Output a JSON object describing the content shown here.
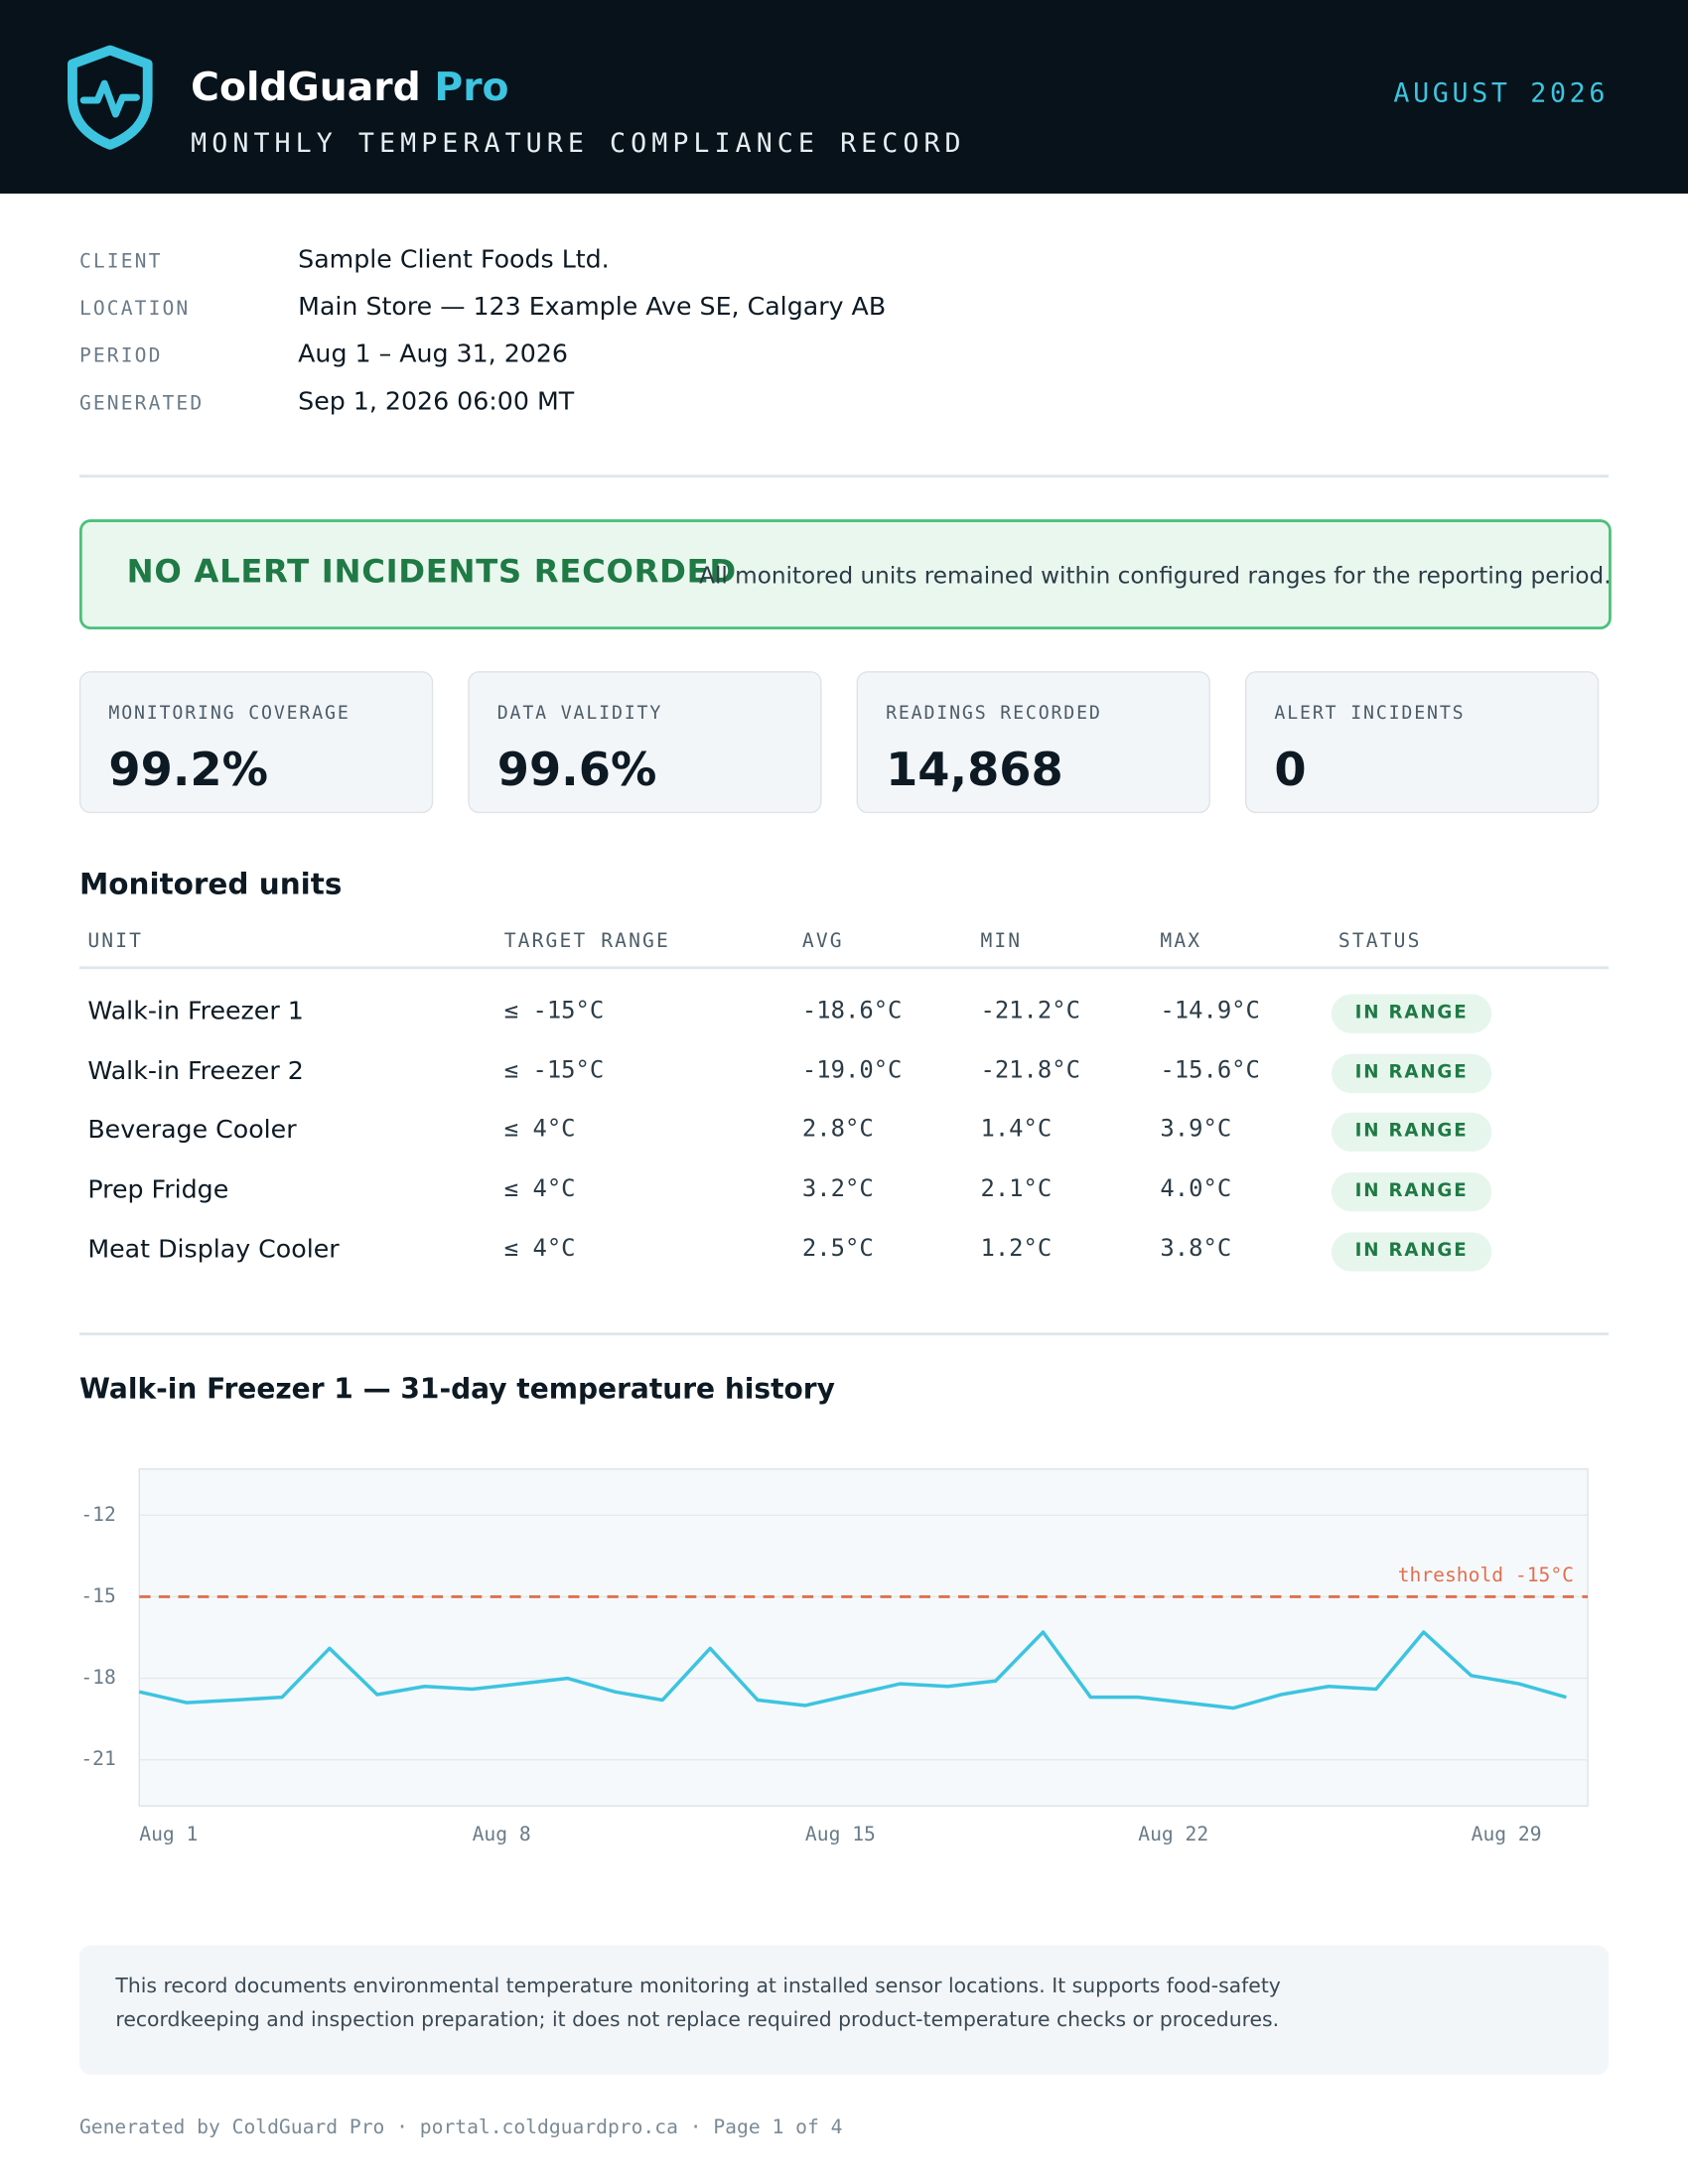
{
  "header": {
    "brand_name": "ColdGuard",
    "brand_suffix": "Pro",
    "subtitle": "MONTHLY TEMPERATURE COMPLIANCE RECORD",
    "month": "AUGUST 2026"
  },
  "info": [
    {
      "label": "CLIENT",
      "value": "Sample Client Foods Ltd."
    },
    {
      "label": "LOCATION",
      "value": "Main Store — 123 Example Ave SE, Calgary AB"
    },
    {
      "label": "PERIOD",
      "value": "Aug 1 – Aug 31, 2026"
    },
    {
      "label": "GENERATED",
      "value": "Sep 1, 2026 06:00 MT"
    }
  ],
  "banner": {
    "title": "NO ALERT INCIDENTS RECORDED",
    "text": "All monitored units remained within configured ranges for the reporting period."
  },
  "kpis": [
    {
      "label": "MONITORING COVERAGE",
      "value": "99.2%"
    },
    {
      "label": "DATA VALIDITY",
      "value": "99.6%"
    },
    {
      "label": "READINGS RECORDED",
      "value": "14,868"
    },
    {
      "label": "ALERT INCIDENTS",
      "value": "0"
    }
  ],
  "table": {
    "title": "Monitored units",
    "columns": [
      "UNIT",
      "TARGET RANGE",
      "AVG",
      "MIN",
      "MAX",
      "STATUS"
    ],
    "rows": [
      [
        "Walk-in Freezer 1",
        "≤ -15°C",
        "-18.6°C",
        "-21.2°C",
        "-14.9°C",
        "IN RANGE"
      ],
      [
        "Walk-in Freezer 2",
        "≤ -15°C",
        "-19.0°C",
        "-21.8°C",
        "-15.6°C",
        "IN RANGE"
      ],
      [
        "Beverage Cooler",
        "≤ 4°C",
        "2.8°C",
        "1.4°C",
        "3.9°C",
        "IN RANGE"
      ],
      [
        "Prep Fridge",
        "≤ 4°C",
        "3.2°C",
        "2.1°C",
        "4.0°C",
        "IN RANGE"
      ],
      [
        "Meat Display Cooler",
        "≤ 4°C",
        "2.5°C",
        "1.2°C",
        "3.8°C",
        "IN RANGE"
      ]
    ]
  },
  "chart": {
    "type": "line",
    "title": "Walk-in Freezer 1 — 31-day temperature history",
    "color": "#3cc4e0",
    "x": [
      1,
      2,
      3,
      4,
      5,
      6,
      7,
      8,
      9,
      10,
      11,
      12,
      13,
      14,
      15,
      16,
      17,
      18,
      19,
      20,
      21,
      22,
      23,
      24,
      25,
      26,
      27,
      28,
      29,
      30,
      31
    ],
    "values": [
      -18.5,
      -18.9,
      -18.8,
      -18.7,
      -16.9,
      -18.6,
      -18.3,
      -18.4,
      -18.2,
      -18.0,
      -18.5,
      -18.8,
      -16.9,
      -18.8,
      -19.0,
      -18.6,
      -18.2,
      -18.3,
      -18.1,
      -16.3,
      -18.7,
      -18.7,
      -18.9,
      -19.1,
      -18.6,
      -18.3,
      -18.4,
      -16.3,
      -17.9,
      -18.2,
      -18.7
    ],
    "xlim": [
      1,
      31.45
    ],
    "xticks": [
      {
        "value": 1,
        "label": "Aug 1"
      },
      {
        "value": 8,
        "label": "Aug 8"
      },
      {
        "value": 15,
        "label": "Aug 15"
      },
      {
        "value": 22,
        "label": "Aug 22"
      },
      {
        "value": 29,
        "label": "Aug 29"
      }
    ],
    "ylim": [
      -22.7,
      -10.3
    ],
    "yticks": [
      -12,
      -15,
      -18,
      -21
    ],
    "grid": true,
    "threshold": -15,
    "threshold_label": "threshold -15°C",
    "threshold_color": "#e0704f"
  },
  "note": "This record documents environmental temperature monitoring at installed sensor locations. It supports food-safety recordkeeping and inspection preparation; it does not replace required product-temperature checks or procedures.",
  "footer": "Generated by ColdGuard Pro · portal.coldguardpro.ca · Page 1 of 4"
}
